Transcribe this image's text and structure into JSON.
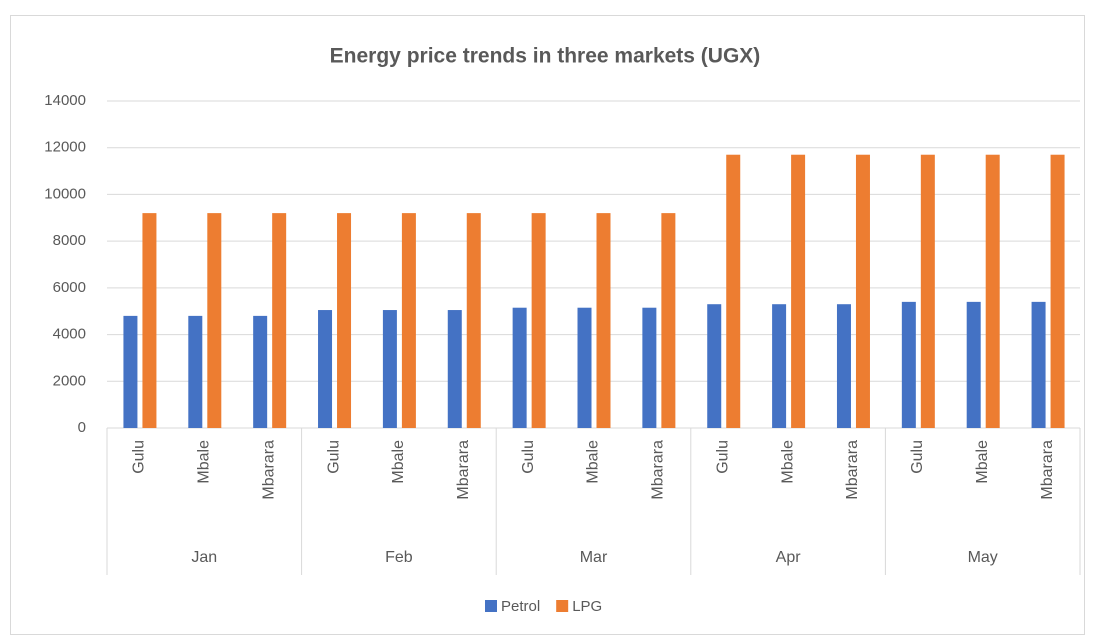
{
  "chart_data": {
    "type": "bar",
    "title": "Energy price trends in three markets (UGX)",
    "groups": [
      "Jan",
      "Feb",
      "Mar",
      "Apr",
      "May"
    ],
    "categories": [
      "Gulu",
      "Mbale",
      "Mbarara",
      "Gulu",
      "Mbale",
      "Mbarara",
      "Gulu",
      "Mbale",
      "Mbarara",
      "Gulu",
      "Mbale",
      "Mbarara",
      "Gulu",
      "Mbale",
      "Mbarara"
    ],
    "series": [
      {
        "name": "Petrol",
        "color": "#4472c4",
        "values": [
          4800,
          4800,
          4800,
          5050,
          5050,
          5050,
          5150,
          5150,
          5150,
          5300,
          5300,
          5300,
          5400,
          5400,
          5400
        ]
      },
      {
        "name": "LPG",
        "color": "#ed7d31",
        "values": [
          9200,
          9200,
          9200,
          9200,
          9200,
          9200,
          9200,
          9200,
          9200,
          11700,
          11700,
          11700,
          11700,
          11700,
          11700
        ]
      }
    ],
    "ylim": [
      0,
      14000
    ],
    "yticks": [
      0,
      2000,
      4000,
      6000,
      8000,
      10000,
      12000,
      14000
    ],
    "grid": true,
    "legend": "bottom"
  }
}
